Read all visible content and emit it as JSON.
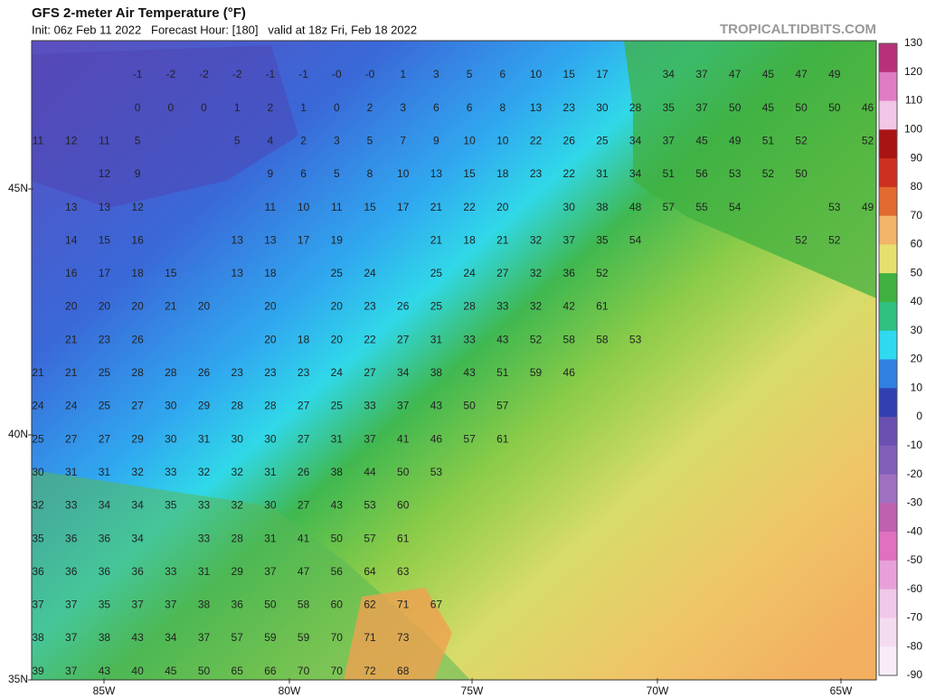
{
  "header": {
    "title": "GFS 2-meter Air Temperature (°F)",
    "subtitle": "Init: 06z Feb 11 2022   Forecast Hour: [180]   valid at 18z Fri, Feb 18 2022",
    "brand": "TROPICALTIDBITS.COM"
  },
  "map": {
    "lat_labels": [
      "45N",
      "40N",
      "35N"
    ],
    "lon_labels": [
      "85W",
      "80W",
      "75W",
      "70W",
      "65W"
    ],
    "grid": [
      [
        null,
        null,
        null,
        -1,
        -2,
        -2,
        -2,
        -1,
        -1,
        {
          "value": 0,
          "label": "-0"
        },
        {
          "value": 0,
          "label": "-0"
        },
        1,
        3,
        5,
        6,
        10,
        15,
        17,
        null,
        34,
        37,
        47,
        45,
        47,
        49
      ],
      [
        null,
        null,
        null,
        0,
        0,
        0,
        1,
        2,
        1,
        0,
        2,
        3,
        6,
        6,
        8,
        13,
        23,
        30,
        28,
        35,
        37,
        50,
        45,
        50,
        50,
        46
      ],
      [
        11,
        12,
        11,
        5,
        null,
        null,
        5,
        4,
        2,
        3,
        5,
        7,
        9,
        10,
        10,
        22,
        26,
        25,
        34,
        37,
        45,
        49,
        51,
        52,
        null,
        52
      ],
      [
        null,
        null,
        12,
        9,
        null,
        null,
        null,
        9,
        6,
        5,
        8,
        10,
        13,
        15,
        18,
        23,
        22,
        31,
        34,
        51,
        56,
        53,
        52,
        50
      ],
      [
        null,
        13,
        13,
        12,
        null,
        null,
        null,
        11,
        10,
        11,
        15,
        17,
        21,
        22,
        20,
        null,
        30,
        38,
        48,
        57,
        55,
        54,
        null,
        null,
        53,
        49
      ],
      [
        null,
        14,
        15,
        16,
        null,
        null,
        13,
        13,
        17,
        19,
        null,
        null,
        21,
        18,
        21,
        32,
        37,
        35,
        54,
        null,
        null,
        null,
        null,
        52,
        52
      ],
      [
        null,
        16,
        17,
        18,
        15,
        null,
        13,
        18,
        null,
        25,
        24,
        null,
        25,
        24,
        27,
        32,
        36,
        52
      ],
      [
        null,
        20,
        20,
        20,
        21,
        20,
        null,
        20,
        null,
        20,
        23,
        26,
        25,
        28,
        33,
        32,
        42,
        61
      ],
      [
        null,
        21,
        23,
        26,
        null,
        null,
        null,
        20,
        18,
        20,
        22,
        27,
        31,
        33,
        43,
        52,
        58,
        58,
        53
      ],
      [
        21,
        21,
        25,
        28,
        28,
        26,
        23,
        23,
        23,
        24,
        27,
        34,
        38,
        43,
        51,
        59,
        46
      ],
      [
        24,
        24,
        25,
        27,
        30,
        29,
        28,
        28,
        27,
        25,
        33,
        37,
        43,
        50,
        57
      ],
      [
        25,
        27,
        27,
        29,
        30,
        31,
        30,
        30,
        27,
        31,
        37,
        41,
        46,
        57,
        61
      ],
      [
        30,
        31,
        31,
        32,
        33,
        32,
        32,
        31,
        26,
        38,
        44,
        50,
        53
      ],
      [
        32,
        33,
        34,
        34,
        35,
        33,
        32,
        30,
        27,
        43,
        53,
        60
      ],
      [
        35,
        36,
        36,
        34,
        null,
        33,
        28,
        31,
        41,
        50,
        57,
        61
      ],
      [
        36,
        36,
        36,
        36,
        33,
        31,
        29,
        37,
        47,
        56,
        64,
        63
      ],
      [
        37,
        37,
        35,
        37,
        37,
        38,
        36,
        50,
        58,
        60,
        62,
        71,
        67
      ],
      [
        38,
        37,
        38,
        43,
        34,
        37,
        57,
        59,
        59,
        70,
        71,
        73
      ],
      [
        39,
        37,
        43,
        40,
        45,
        50,
        65,
        66,
        70,
        70,
        72,
        68
      ]
    ]
  },
  "colorbar": {
    "labels": [
      130,
      120,
      110,
      100,
      90,
      80,
      70,
      60,
      50,
      40,
      30,
      20,
      10,
      0,
      -10,
      -20,
      -30,
      -40,
      -50,
      -60,
      -70,
      -80,
      -90
    ],
    "colors": [
      "#b8307a",
      "#e07cc4",
      "#f2c6e6",
      "#a81414",
      "#cc3020",
      "#e06a30",
      "#f2b468",
      "#e6e070",
      "#40b040",
      "#30c080",
      "#30d8f0",
      "#3080e0",
      "#3040b0",
      "#6a50b0",
      "#8060b8",
      "#a070c0",
      "#c060b0",
      "#e070c0",
      "#e8a0d8",
      "#f0c8e8",
      "#f4dcf0",
      "#f8ecf8"
    ]
  }
}
